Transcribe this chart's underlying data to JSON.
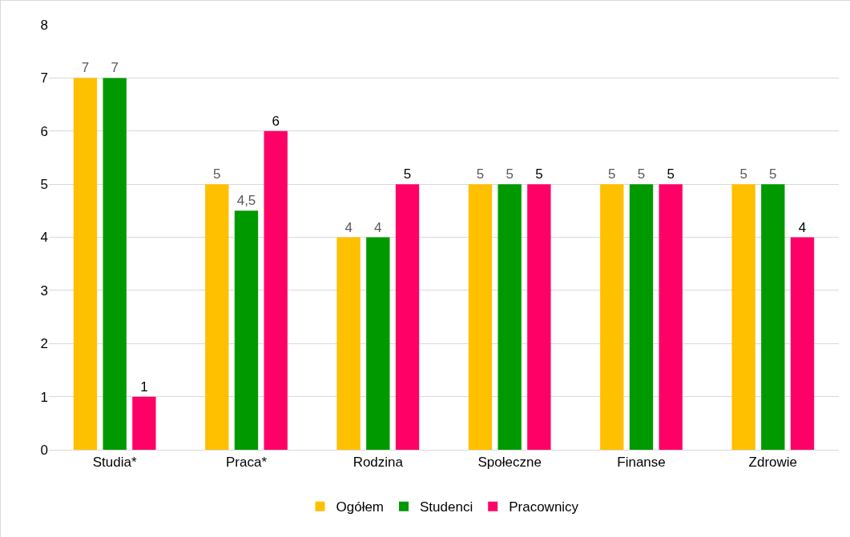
{
  "chart_data": {
    "type": "bar",
    "categories": [
      "Studia*",
      "Praca*",
      "Rodzina",
      "Społeczne",
      "Finanse",
      "Zdrowie"
    ],
    "series": [
      {
        "name": "Ogółem",
        "color": "#ffc000",
        "values": [
          7,
          5,
          4,
          5,
          5,
          5
        ],
        "value_labels": [
          "7",
          "5",
          "4",
          "5",
          "5",
          "5"
        ]
      },
      {
        "name": "Studenci",
        "color": "#009900",
        "values": [
          7,
          4.5,
          4,
          5,
          5,
          5
        ],
        "value_labels": [
          "7",
          "4,5",
          "4",
          "5",
          "5",
          "5"
        ]
      },
      {
        "name": "Pracownicy",
        "color": "#ff0066",
        "values": [
          1,
          6,
          5,
          5,
          5,
          4
        ],
        "value_labels": [
          "1",
          "6",
          "5",
          "5",
          "5",
          "4"
        ]
      }
    ],
    "ylim": [
      0,
      8
    ],
    "yticks": [
      0,
      1,
      2,
      3,
      4,
      5,
      6,
      7,
      8
    ],
    "grid": "y",
    "legend": "bottom"
  }
}
